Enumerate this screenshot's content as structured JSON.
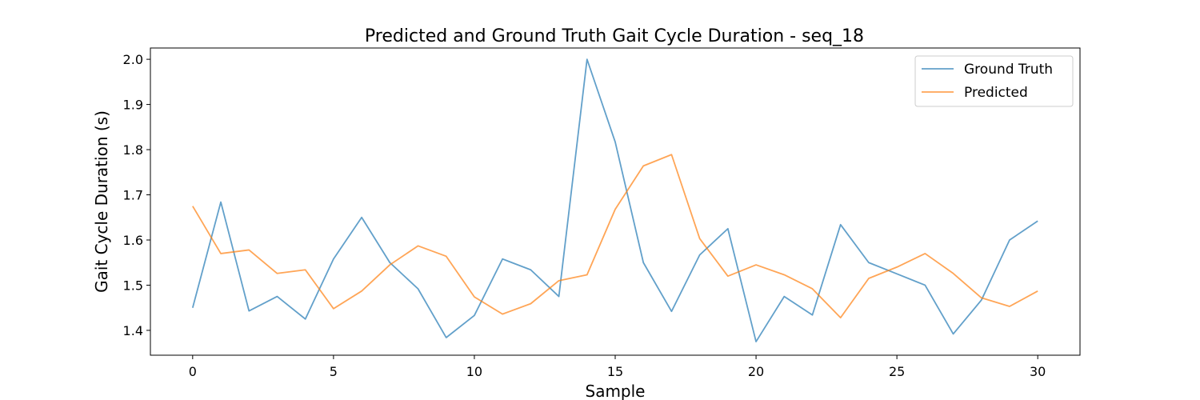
{
  "chart_data": {
    "type": "line",
    "title": "Predicted and Ground Truth Gait Cycle Duration - seq_18",
    "xlabel": "Sample",
    "ylabel": "Gait Cycle Duration (s)",
    "xlim": [
      -1.5,
      31.5
    ],
    "ylim": [
      1.345,
      2.025
    ],
    "xticks": [
      0,
      5,
      10,
      15,
      20,
      25,
      30
    ],
    "yticks": [
      1.4,
      1.5,
      1.6,
      1.7,
      1.8,
      1.9,
      2.0
    ],
    "grid": false,
    "legend_position": "top-right",
    "x": [
      0,
      1,
      2,
      3,
      4,
      5,
      6,
      7,
      8,
      9,
      10,
      11,
      12,
      13,
      14,
      15,
      16,
      17,
      18,
      19,
      20,
      21,
      22,
      23,
      24,
      25,
      26,
      27,
      28,
      29,
      30
    ],
    "series": [
      {
        "name": "Ground Truth",
        "color": "#1f77b4",
        "values": [
          1.45,
          1.684,
          1.443,
          1.475,
          1.425,
          1.558,
          1.65,
          1.55,
          1.492,
          1.384,
          1.433,
          1.558,
          1.534,
          1.475,
          2.0,
          1.817,
          1.55,
          1.442,
          1.567,
          1.625,
          1.375,
          1.475,
          1.434,
          1.634,
          1.55,
          1.525,
          1.5,
          1.392,
          1.467,
          1.6,
          1.642
        ]
      },
      {
        "name": "Predicted",
        "color": "#ff7f0e",
        "values": [
          1.675,
          1.57,
          1.578,
          1.526,
          1.534,
          1.448,
          1.487,
          1.545,
          1.587,
          1.564,
          1.474,
          1.436,
          1.459,
          1.51,
          1.523,
          1.668,
          1.764,
          1.789,
          1.603,
          1.52,
          1.545,
          1.523,
          1.492,
          1.428,
          1.515,
          1.54,
          1.57,
          1.526,
          1.472,
          1.453,
          1.487
        ]
      }
    ]
  }
}
